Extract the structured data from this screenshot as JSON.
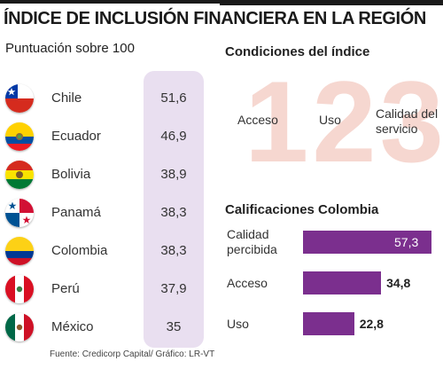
{
  "title": "ÍNDICE DE INCLUSIÓN FINANCIERA EN LA REGIÓN",
  "left_panel": {
    "subtitle": "Puntuación sobre 100"
  },
  "right_panel": {
    "conditions_title": "Condiciones del índice",
    "big_number": "123",
    "conditions": [
      "Acceso",
      "Uso",
      "Calidad del servicio"
    ],
    "colombia_title": "Calificaciones Colombia"
  },
  "source": "Fuente: Credicorp Capital/ Gráfico: LR-VT",
  "colors": {
    "accent": "#7b2f8e",
    "score_column": "#e9dff0",
    "digits": "#f6d7d0"
  },
  "chart_data": [
    {
      "type": "table",
      "title": "Puntuación sobre 100",
      "categories": [
        "Chile",
        "Ecuador",
        "Bolivia",
        "Panamá",
        "Colombia",
        "Perú",
        "México"
      ],
      "flags": [
        "chile-flag-icon",
        "ecuador-flag-icon",
        "bolivia-flag-icon",
        "panama-flag-icon",
        "colombia-flag-icon",
        "peru-flag-icon",
        "mexico-flag-icon"
      ],
      "values": [
        51.6,
        46.9,
        38.9,
        38.3,
        38.3,
        37.9,
        35
      ],
      "value_labels": [
        "51,6",
        "46,9",
        "38,9",
        "38,3",
        "38,3",
        "37,9",
        "35"
      ]
    },
    {
      "type": "bar",
      "orientation": "horizontal",
      "title": "Calificaciones Colombia",
      "categories": [
        "Calidad percibida",
        "Acceso",
        "Uso"
      ],
      "category_lines": [
        [
          "Calidad",
          "percibida"
        ],
        [
          "Acceso"
        ],
        [
          "Uso"
        ]
      ],
      "values": [
        57.3,
        34.8,
        22.8
      ],
      "value_labels": [
        "57,3",
        "34,8",
        "22,8"
      ],
      "grid": false
    }
  ]
}
